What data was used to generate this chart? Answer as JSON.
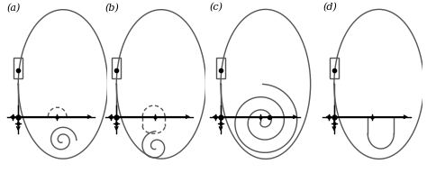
{
  "panels": [
    "(a)",
    "(b)",
    "(c)",
    "(d)"
  ],
  "bg_color": "#ffffff",
  "line_color": "#555555",
  "lw": 1.0,
  "figsize": [
    4.74,
    1.92
  ],
  "dpi": 100
}
